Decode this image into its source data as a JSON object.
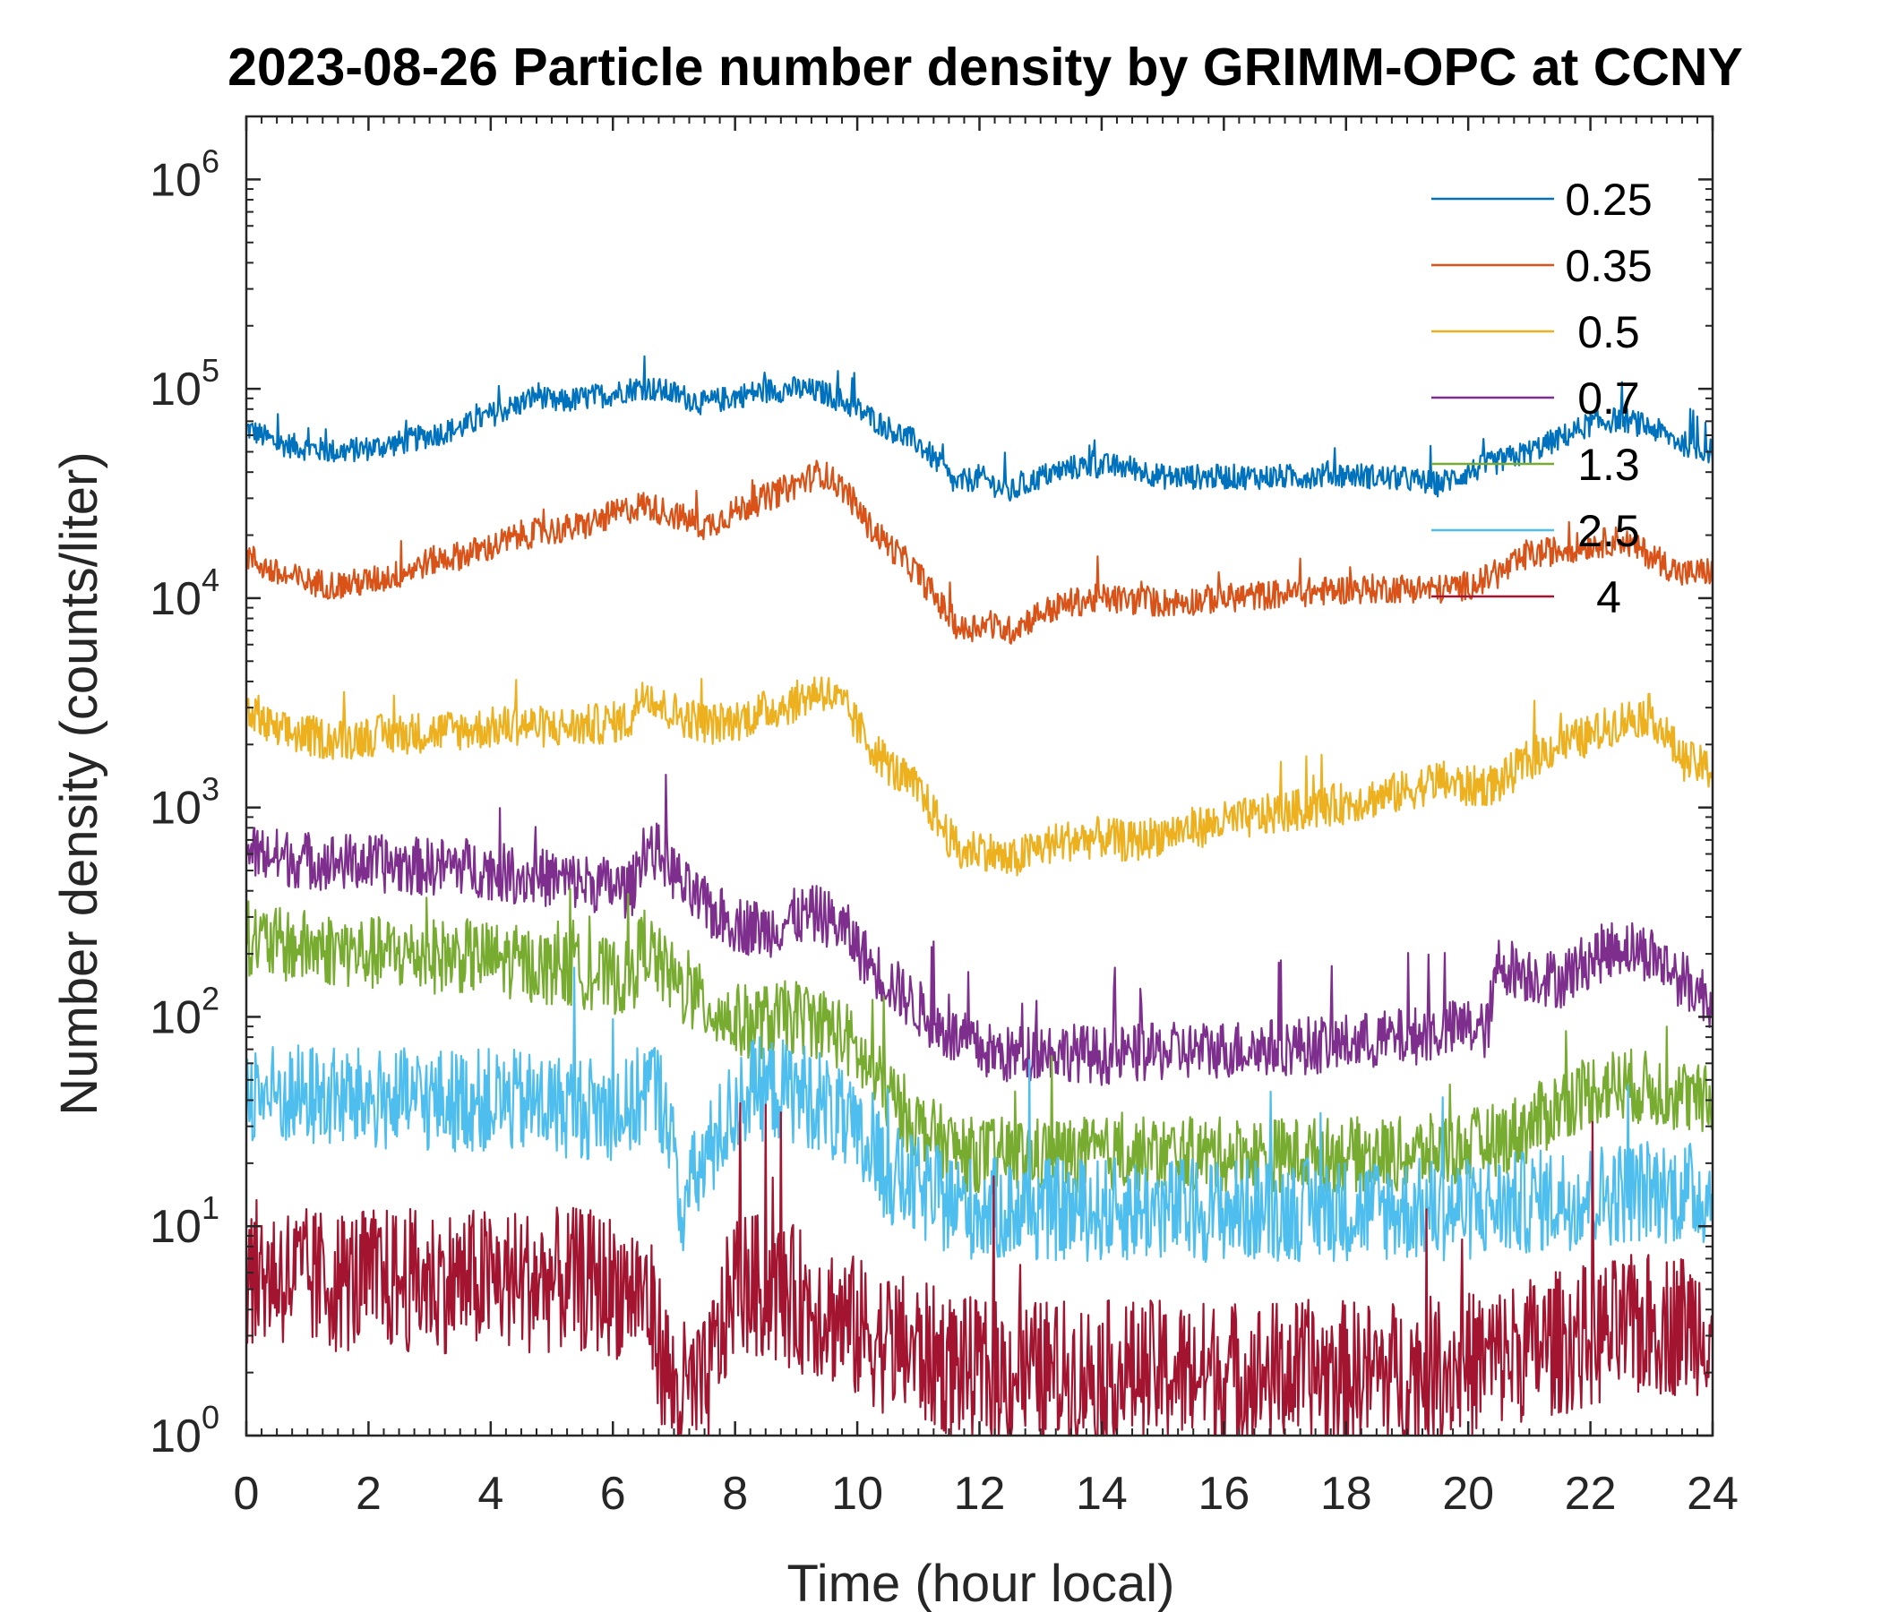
{
  "chart_data": {
    "type": "line",
    "title": "2023-08-26 Particle number density by GRIMM-OPC at CCNY",
    "xlabel": "Time (hour local)",
    "ylabel": "Number density (counts/liter)",
    "xlim": [
      0,
      24
    ],
    "ylim": [
      1,
      2000000
    ],
    "yscale": "log",
    "x_ticks": [
      "0",
      "2",
      "4",
      "6",
      "8",
      "10",
      "12",
      "14",
      "16",
      "18",
      "20",
      "22",
      "24"
    ],
    "y_ticks": [
      {
        "base": "10",
        "exp": "0"
      },
      {
        "base": "10",
        "exp": "1"
      },
      {
        "base": "10",
        "exp": "2"
      },
      {
        "base": "10",
        "exp": "3"
      },
      {
        "base": "10",
        "exp": "4"
      },
      {
        "base": "10",
        "exp": "5"
      },
      {
        "base": "10",
        "exp": "6"
      }
    ],
    "legend_position": "top-right",
    "series": [
      {
        "name": "0.25",
        "color": "#0072BD",
        "x": [
          0,
          0.5,
          1,
          1.5,
          2,
          2.5,
          3,
          3.5,
          4,
          4.5,
          4.8,
          5,
          5.5,
          6,
          6.3,
          6.5,
          7,
          7.5,
          8,
          8.5,
          9,
          9.5,
          10,
          10.5,
          11,
          11.3,
          11.6,
          12,
          12.5,
          13,
          13.5,
          14,
          14.5,
          15,
          16,
          17,
          18,
          19,
          19.5,
          20,
          20.5,
          21,
          21.5,
          22,
          22.5,
          23,
          23.5,
          24
        ],
        "values": [
          65000,
          55000,
          52000,
          50000,
          52000,
          55000,
          60000,
          65000,
          75000,
          85000,
          95000,
          85000,
          90000,
          95000,
          100000,
          102000,
          95000,
          85000,
          92000,
          98000,
          100000,
          95000,
          80000,
          65000,
          55000,
          45000,
          35000,
          38000,
          32000,
          38000,
          42000,
          43000,
          42000,
          38000,
          38000,
          38000,
          39000,
          37000,
          35000,
          40000,
          45000,
          50000,
          58000,
          68000,
          72000,
          65000,
          55000,
          50000
        ]
      },
      {
        "name": "0.35",
        "color": "#D95319",
        "x": [
          0,
          0.5,
          1,
          1.5,
          2,
          2.5,
          3,
          3.5,
          4,
          4.5,
          5,
          5.5,
          6,
          6.5,
          7,
          7.5,
          8,
          8.5,
          9,
          9.4,
          9.8,
          10.2,
          10.6,
          11,
          11.4,
          11.7,
          12,
          12.5,
          13,
          13.5,
          14,
          15,
          16,
          17,
          18,
          19,
          19.5,
          20,
          20.5,
          21,
          21.5,
          22,
          22.5,
          23,
          23.5,
          24
        ],
        "values": [
          16000,
          13000,
          12000,
          11500,
          12000,
          13000,
          15000,
          16000,
          17500,
          20000,
          21000,
          22000,
          25000,
          28000,
          25000,
          22000,
          26000,
          30000,
          35000,
          40000,
          33000,
          22000,
          17000,
          13000,
          9000,
          7000,
          7500,
          7000,
          8500,
          9500,
          10000,
          9500,
          10000,
          10500,
          11000,
          11200,
          11000,
          11500,
          13000,
          16000,
          17000,
          18000,
          19000,
          16000,
          13000,
          13500
        ]
      },
      {
        "name": "0.5",
        "color": "#EDB120",
        "x": [
          0,
          0.5,
          1,
          1.5,
          2,
          2.5,
          3,
          3.5,
          4,
          4.5,
          5,
          5.5,
          6,
          6.3,
          6.5,
          6.8,
          7.2,
          7.6,
          8,
          8.5,
          9,
          9.4,
          9.8,
          10.2,
          10.6,
          11,
          11.4,
          11.7,
          12,
          12.5,
          13,
          13.5,
          14,
          14.5,
          15,
          16,
          17,
          18,
          19,
          19.5,
          20,
          20.5,
          21,
          21.5,
          22,
          22.5,
          23,
          23.5,
          24
        ],
        "values": [
          2800,
          2300,
          2200,
          2100,
          2200,
          2250,
          2300,
          2350,
          2400,
          2500,
          2400,
          2450,
          2550,
          2600,
          3800,
          3000,
          2700,
          2500,
          2600,
          2900,
          3200,
          3700,
          3000,
          2000,
          1500,
          1200,
          800,
          600,
          650,
          550,
          650,
          700,
          720,
          680,
          750,
          850,
          950,
          1050,
          1200,
          1350,
          1250,
          1300,
          1700,
          2000,
          2200,
          2600,
          2800,
          1700,
          1500
        ]
      },
      {
        "name": "0.7",
        "color": "#7E2F8E",
        "x": [
          0,
          0.5,
          1,
          1.5,
          2,
          2.5,
          3,
          3.5,
          4,
          4.5,
          5,
          5.5,
          6,
          6.3,
          6.5,
          6.8,
          7.2,
          7.6,
          8,
          8.5,
          9,
          9.4,
          9.8,
          10.2,
          10.6,
          11,
          11.4,
          11.8,
          12,
          12.5,
          13,
          13.5,
          14,
          15,
          16,
          17,
          18,
          19,
          19.5,
          20,
          20.3,
          20.5,
          21,
          21.5,
          22,
          22.5,
          23,
          23.5,
          24
        ],
        "values": [
          620,
          580,
          560,
          550,
          540,
          530,
          520,
          530,
          500,
          470,
          460,
          440,
          420,
          400,
          650,
          600,
          400,
          320,
          280,
          260,
          300,
          310,
          260,
          180,
          140,
          110,
          85,
          75,
          70,
          65,
          70,
          68,
          65,
          68,
          70,
          72,
          75,
          80,
          85,
          90,
          85,
          180,
          160,
          150,
          190,
          220,
          200,
          150,
          120
        ]
      },
      {
        "name": "1.3",
        "color": "#77AC30",
        "x": [
          0,
          0.5,
          1,
          1.5,
          2,
          2.5,
          3,
          3.5,
          4,
          4.5,
          5,
          5.5,
          6,
          6.3,
          6.5,
          6.8,
          7.2,
          7.6,
          8,
          8.5,
          9,
          9.4,
          9.8,
          10.2,
          10.6,
          11,
          11.4,
          11.8,
          12,
          13,
          14,
          15,
          16,
          17,
          18,
          19,
          20,
          20.5,
          21,
          21.5,
          22,
          22.5,
          23,
          23.5,
          24
        ],
        "values": [
          240,
          220,
          215,
          210,
          200,
          200,
          195,
          195,
          190,
          180,
          170,
          165,
          155,
          150,
          230,
          170,
          130,
          110,
          95,
          95,
          100,
          95,
          80,
          55,
          40,
          30,
          25,
          22,
          22,
          22,
          22,
          22,
          22,
          22,
          22,
          22,
          24,
          26,
          30,
          38,
          45,
          48,
          45,
          42,
          38
        ]
      },
      {
        "name": "2.5",
        "color": "#4DBEEE",
        "x": [
          0,
          0.5,
          1,
          1.5,
          2,
          2.5,
          3,
          3.5,
          4,
          4.5,
          5,
          5.5,
          6,
          6.3,
          6.6,
          6.9,
          7.1,
          7.4,
          7.8,
          8.2,
          8.6,
          9,
          9.4,
          9.8,
          10.2,
          10.6,
          11,
          11.5,
          12,
          13,
          14,
          15,
          16,
          17,
          18,
          19,
          20,
          21,
          22,
          23,
          24
        ],
        "values": [
          45,
          42,
          42,
          41,
          40,
          40,
          40,
          40,
          40,
          39,
          38,
          37,
          36,
          36,
          50,
          35,
          12,
          18,
          30,
          45,
          45,
          44,
          40,
          30,
          22,
          17,
          15,
          13,
          12,
          12,
          12,
          12,
          12,
          12,
          12,
          12,
          12,
          13,
          14,
          15,
          14
        ]
      },
      {
        "name": "4",
        "color": "#A2142F",
        "x": [
          0,
          0.5,
          1,
          1.5,
          2,
          2.5,
          3,
          3.5,
          4,
          4.5,
          5,
          5.5,
          6,
          6.5,
          7,
          7.5,
          8,
          8.5,
          9,
          9.5,
          10,
          10.5,
          11,
          11.5,
          12,
          13,
          14,
          15,
          16,
          17,
          18,
          19,
          20,
          21,
          22,
          23,
          24
        ],
        "values": [
          6,
          6,
          5.5,
          5.5,
          5.5,
          5.5,
          5.5,
          5.5,
          5.5,
          5.5,
          5.5,
          5.5,
          5.2,
          5.0,
          1.6,
          1.6,
          5.5,
          5.0,
          4.5,
          4.0,
          3.2,
          2.8,
          2.5,
          2.2,
          2.0,
          2.0,
          2.0,
          2.0,
          2.0,
          2.0,
          2.0,
          2.0,
          2.2,
          2.6,
          3.0,
          3.4,
          3.5
        ]
      }
    ]
  }
}
